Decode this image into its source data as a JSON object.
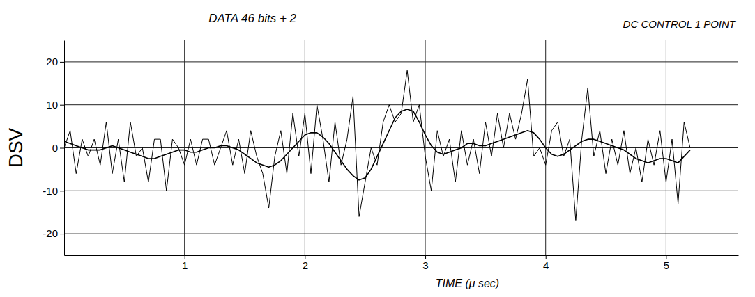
{
  "chart_data": {
    "type": "line",
    "title": "DATA 46 bits + 2",
    "annotations": [
      "DC CONTROL 1 POINT"
    ],
    "y_label": "DSV",
    "x_label": "TIME (μ sec)",
    "x": [
      0,
      0.05,
      0.1,
      0.15,
      0.2,
      0.25,
      0.3,
      0.35,
      0.4,
      0.45,
      0.5,
      0.55,
      0.6,
      0.65,
      0.7,
      0.75,
      0.8,
      0.85,
      0.9,
      0.95,
      1,
      1.05,
      1.1,
      1.15,
      1.2,
      1.25,
      1.3,
      1.35,
      1.4,
      1.45,
      1.5,
      1.55,
      1.6,
      1.65,
      1.7,
      1.75,
      1.8,
      1.85,
      1.9,
      1.95,
      2,
      2.05,
      2.1,
      2.15,
      2.2,
      2.25,
      2.3,
      2.35,
      2.4,
      2.45,
      2.5,
      2.55,
      2.6,
      2.65,
      2.7,
      2.75,
      2.8,
      2.85,
      2.9,
      2.95,
      3,
      3.05,
      3.1,
      3.15,
      3.2,
      3.25,
      3.3,
      3.35,
      3.4,
      3.45,
      3.5,
      3.55,
      3.6,
      3.65,
      3.7,
      3.75,
      3.8,
      3.85,
      3.9,
      3.95,
      4,
      4.05,
      4.1,
      4.15,
      4.2,
      4.25,
      4.3,
      4.35,
      4.4,
      4.45,
      4.5,
      4.55,
      4.6,
      4.65,
      4.7,
      4.75,
      4.8,
      4.85,
      4.9,
      4.95,
      5,
      5.05,
      5.1,
      5.15,
      5.2
    ],
    "series": [
      {
        "color": "#000000",
        "line_style": "solid",
        "values": [
          0,
          4,
          -6,
          2,
          -2,
          2,
          -4,
          6,
          -6,
          2,
          -8,
          6,
          -2,
          0,
          -8,
          2,
          2,
          -10,
          2,
          0,
          -4,
          2,
          -4,
          2,
          2,
          -4,
          0,
          4,
          -4,
          2,
          -6,
          4,
          -2,
          -6,
          -14,
          -2,
          4,
          -6,
          8,
          -2,
          8,
          -6,
          10,
          2,
          -8,
          6,
          -4,
          2,
          12,
          -16,
          -8,
          0,
          -4,
          6,
          10,
          6,
          8,
          18,
          6,
          10,
          -2,
          -10,
          4,
          -2,
          2,
          -8,
          4,
          -4,
          2,
          -6,
          6,
          -2,
          8,
          0,
          8,
          2,
          8,
          16,
          -2,
          0,
          -4,
          4,
          6,
          -2,
          2,
          -17,
          2,
          14,
          -2,
          4,
          -6,
          2,
          -4,
          4,
          -6,
          0,
          -8,
          2,
          -4,
          4,
          -8,
          2,
          -13,
          6,
          0
        ]
      },
      {
        "color": "#000000",
        "line_style": "solid",
        "values": [
          1.5,
          1,
          0.5,
          0,
          -0.5,
          -0.5,
          -0.5,
          0,
          0.5,
          0,
          -0.5,
          -1,
          -1.5,
          -2,
          -2.5,
          -2.5,
          -2,
          -1.5,
          -1,
          -0.5,
          -0.5,
          -1,
          -1,
          -0.5,
          0,
          0,
          0.5,
          0.5,
          0,
          -0.5,
          -1.5,
          -2.5,
          -3.5,
          -4,
          -4.5,
          -4,
          -3,
          -1.5,
          0,
          1.5,
          3,
          3.5,
          3.5,
          2.5,
          1,
          -1,
          -3,
          -5,
          -6.5,
          -7.5,
          -7,
          -5,
          -2,
          1,
          4,
          7,
          8.5,
          9,
          8.5,
          6,
          3,
          0.5,
          -1,
          -1.5,
          -1,
          -0.5,
          0,
          1,
          1,
          0.5,
          0.5,
          1,
          1.5,
          2,
          2.5,
          3,
          3.5,
          4,
          3.5,
          2,
          0,
          -1.5,
          -2,
          -1.5,
          -0.5,
          0.5,
          1.5,
          2,
          2,
          1.5,
          1,
          0.5,
          0,
          -0.5,
          -1.5,
          -2.5,
          -3,
          -3.5,
          -3,
          -2.5,
          -2.5,
          -3,
          -3.5,
          -2,
          -0.5
        ]
      }
    ],
    "xlim": [
      0,
      5.6
    ],
    "xticks": [
      1,
      2,
      3,
      4,
      5
    ],
    "ylim": [
      -25,
      25
    ],
    "yticks": [
      -20,
      -10,
      0,
      10,
      20
    ],
    "grid": true
  }
}
